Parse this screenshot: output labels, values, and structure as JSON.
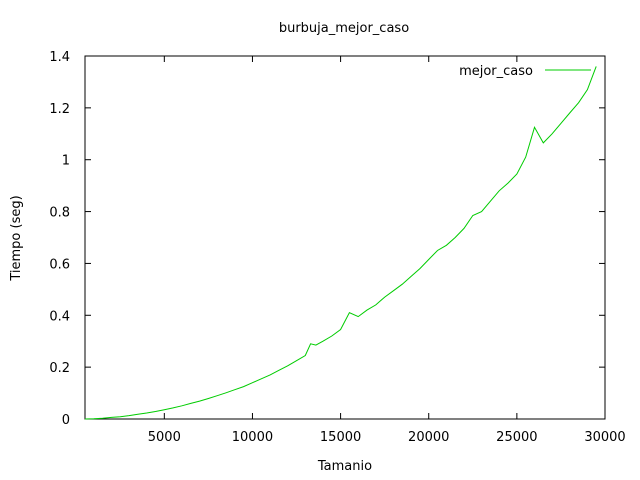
{
  "chart_data": {
    "type": "line",
    "title": "burbuja_mejor_caso",
    "xlabel": "Tamanio",
    "ylabel": "Tiempo (seg)",
    "xlim": [
      500,
      30000
    ],
    "ylim": [
      0,
      1.4
    ],
    "xticks": [
      5000,
      10000,
      15000,
      20000,
      25000,
      30000
    ],
    "yticks": [
      0,
      0.2,
      0.4,
      0.6,
      0.8,
      1,
      1.2,
      1.4
    ],
    "xtick_labels": [
      "5000",
      "10000",
      "15000",
      "20000",
      "25000",
      "30000"
    ],
    "ytick_labels": [
      "0",
      "0.2",
      "0.4",
      "0.6",
      "0.8",
      "1",
      "1.2",
      "1.4"
    ],
    "grid": false,
    "legend_position": "top-right",
    "series": [
      {
        "name": "mejor_caso",
        "color": "#00cc00",
        "x": [
          500,
          1000,
          1500,
          2000,
          2500,
          3000,
          3500,
          4000,
          4500,
          5000,
          5500,
          6000,
          6500,
          7000,
          7500,
          8000,
          8500,
          9000,
          9500,
          10000,
          10500,
          11000,
          11500,
          12000,
          12500,
          13000,
          13300,
          13600,
          14000,
          14500,
          15000,
          15500,
          16000,
          16500,
          17000,
          17500,
          18000,
          18500,
          19000,
          19500,
          20000,
          20500,
          21000,
          21500,
          22000,
          22500,
          23000,
          23500,
          24000,
          24500,
          25000,
          25500,
          26000,
          26500,
          27000,
          27500,
          28000,
          28500,
          29000,
          29500
        ],
        "y": [
          0.0,
          0.001,
          0.003,
          0.006,
          0.009,
          0.013,
          0.018,
          0.023,
          0.029,
          0.036,
          0.043,
          0.051,
          0.06,
          0.069,
          0.079,
          0.09,
          0.101,
          0.113,
          0.125,
          0.14,
          0.155,
          0.17,
          0.188,
          0.205,
          0.225,
          0.245,
          0.29,
          0.285,
          0.3,
          0.32,
          0.345,
          0.41,
          0.395,
          0.42,
          0.44,
          0.47,
          0.495,
          0.52,
          0.55,
          0.58,
          0.615,
          0.65,
          0.67,
          0.7,
          0.735,
          0.785,
          0.8,
          0.84,
          0.88,
          0.91,
          0.945,
          1.01,
          1.125,
          1.065,
          1.1,
          1.14,
          1.18,
          1.22,
          1.27,
          1.36
        ]
      }
    ]
  }
}
